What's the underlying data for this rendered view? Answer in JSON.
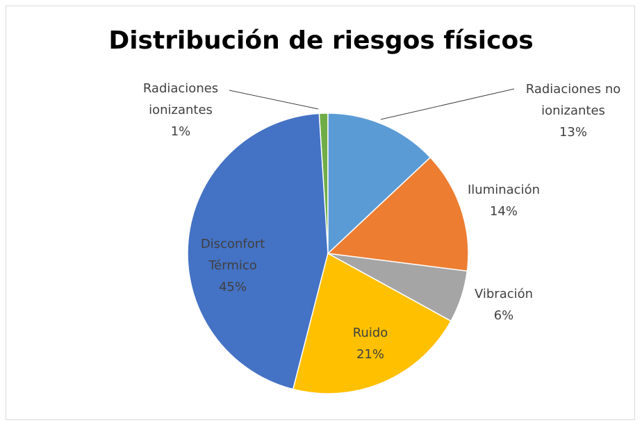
{
  "chart_data": {
    "type": "pie",
    "title": "Distribución de riesgos físicos",
    "categories": [
      "Radiaciones no ionizantes",
      "Iluminación",
      "Vibración",
      "Ruido",
      "Disconfort Térmico",
      "Radiaciones ionizantes"
    ],
    "values": [
      13,
      14,
      6,
      21,
      45,
      1
    ],
    "value_labels": [
      "13%",
      "14%",
      "6%",
      "21%",
      "45%",
      "1%"
    ],
    "colors": [
      "#5b9bd5",
      "#ed7d31",
      "#a5a5a5",
      "#ffc000",
      "#4472c4",
      "#70ad47"
    ]
  }
}
